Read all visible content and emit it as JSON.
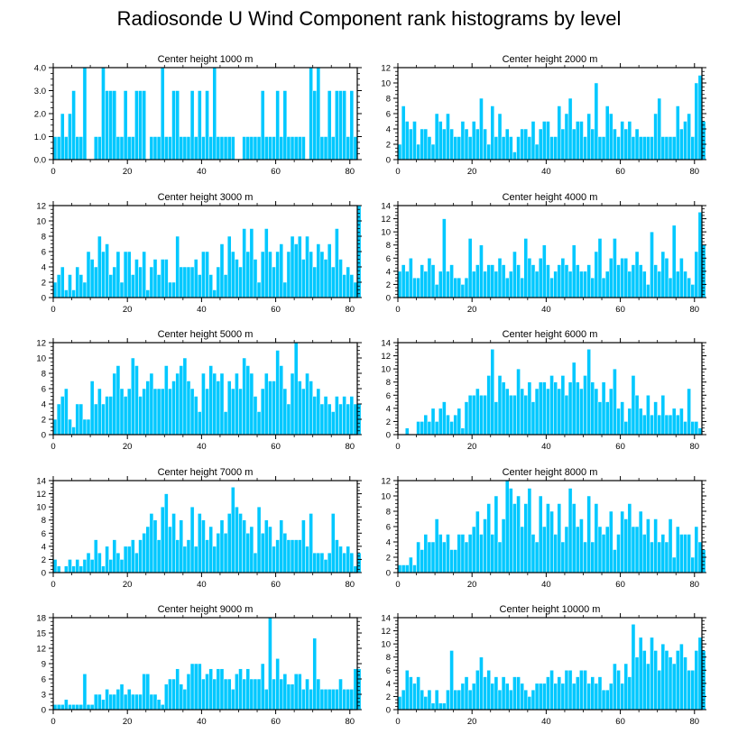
{
  "title": "Radiosonde U Wind Component rank histograms by level",
  "colors": {
    "bar": "#00c8ff",
    "bar_edge": "#ffffff",
    "axis": "#000000"
  },
  "chart_data": [
    {
      "type": "bar",
      "title": "Center height 1000 m",
      "xlim": [
        0,
        82
      ],
      "ylim": [
        0,
        4
      ],
      "xticks": [
        0,
        20,
        40,
        60,
        80
      ],
      "yticks": [
        0,
        1,
        2,
        3,
        4
      ],
      "ytick_labels": [
        "0.0",
        "1.0",
        "2.0",
        "3.0",
        "4.0"
      ],
      "values": [
        1,
        1,
        2,
        1,
        2,
        3,
        1,
        1,
        4,
        0,
        0,
        1,
        1,
        4,
        3,
        3,
        3,
        1,
        1,
        3,
        1,
        1,
        3,
        3,
        3,
        0,
        1,
        1,
        1,
        4,
        1,
        1,
        3,
        3,
        1,
        1,
        1,
        3,
        1,
        3,
        1,
        3,
        1,
        4,
        1,
        1,
        1,
        1,
        1,
        0,
        0,
        1,
        1,
        1,
        1,
        1,
        3,
        1,
        1,
        1,
        3,
        1,
        3,
        1,
        1,
        1,
        1,
        1,
        0,
        4,
        3,
        4,
        1,
        1,
        3,
        1,
        3,
        3,
        3,
        1,
        3,
        1
      ]
    },
    {
      "type": "bar",
      "title": "Center height 2000 m",
      "xlim": [
        0,
        82
      ],
      "ylim": [
        0,
        12
      ],
      "xticks": [
        0,
        20,
        40,
        60,
        80
      ],
      "yticks": [
        0,
        2,
        4,
        6,
        8,
        10,
        12
      ],
      "ytick_labels": [
        "0",
        "2",
        "4",
        "6",
        "8",
        "10",
        "12"
      ],
      "values": [
        2,
        7,
        5,
        4,
        5,
        2,
        4,
        4,
        3,
        2,
        6,
        5,
        4,
        6,
        4,
        3,
        3,
        5,
        4,
        3,
        5,
        4,
        8,
        4,
        2,
        7,
        3,
        6,
        3,
        4,
        3,
        1,
        3,
        4,
        4,
        3,
        5,
        2,
        4,
        5,
        5,
        3,
        3,
        7,
        4,
        6,
        8,
        4,
        5,
        5,
        3,
        6,
        4,
        10,
        3,
        3,
        7,
        6,
        4,
        3,
        5,
        4,
        5,
        3,
        4,
        3,
        3,
        3,
        3,
        6,
        8,
        3,
        3,
        3,
        3,
        7,
        4,
        5,
        6,
        3,
        10,
        11,
        5
      ]
    },
    {
      "type": "bar",
      "title": "Center height 3000 m",
      "xlim": [
        0,
        82
      ],
      "ylim": [
        0,
        12
      ],
      "xticks": [
        0,
        20,
        40,
        60,
        80
      ],
      "yticks": [
        0,
        2,
        4,
        6,
        8,
        10,
        12
      ],
      "ytick_labels": [
        "0",
        "2",
        "4",
        "6",
        "8",
        "10",
        "12"
      ],
      "values": [
        2,
        3,
        4,
        1,
        3,
        1,
        4,
        3,
        2,
        6,
        5,
        4,
        8,
        6,
        7,
        3,
        4,
        6,
        2,
        6,
        6,
        3,
        5,
        4,
        6,
        1,
        4,
        5,
        3,
        5,
        5,
        2,
        2,
        8,
        4,
        4,
        4,
        4,
        5,
        3,
        6,
        6,
        3,
        1,
        4,
        7,
        3,
        8,
        6,
        5,
        4,
        9,
        6,
        9,
        5,
        2,
        6,
        9,
        6,
        4,
        6,
        7,
        2,
        6,
        8,
        7,
        8,
        5,
        8,
        6,
        4,
        7,
        6,
        5,
        7,
        4,
        9,
        5,
        3,
        4,
        3,
        2,
        12
      ]
    },
    {
      "type": "bar",
      "title": "Center height 4000 m",
      "xlim": [
        0,
        82
      ],
      "ylim": [
        0,
        14
      ],
      "xticks": [
        0,
        20,
        40,
        60,
        80
      ],
      "yticks": [
        0,
        2,
        4,
        6,
        8,
        10,
        12,
        14
      ],
      "ytick_labels": [
        "0",
        "2",
        "4",
        "6",
        "8",
        "10",
        "12",
        "14"
      ],
      "values": [
        4,
        5,
        4,
        6,
        3,
        3,
        5,
        4,
        6,
        5,
        2,
        4,
        12,
        4,
        5,
        3,
        3,
        2,
        3,
        9,
        4,
        5,
        8,
        4,
        5,
        5,
        4,
        6,
        5,
        3,
        4,
        7,
        5,
        3,
        9,
        6,
        5,
        4,
        6,
        8,
        5,
        3,
        4,
        5,
        6,
        5,
        4,
        8,
        5,
        4,
        4,
        5,
        3,
        7,
        9,
        3,
        4,
        6,
        9,
        5,
        6,
        6,
        4,
        5,
        7,
        5,
        4,
        2,
        10,
        5,
        4,
        7,
        6,
        3,
        11,
        4,
        6,
        4,
        3,
        2,
        7,
        13,
        8
      ]
    },
    {
      "type": "bar",
      "title": "Center height 5000 m",
      "xlim": [
        0,
        82
      ],
      "ylim": [
        0,
        12
      ],
      "xticks": [
        0,
        20,
        40,
        60,
        80
      ],
      "yticks": [
        0,
        2,
        4,
        6,
        8,
        10,
        12
      ],
      "ytick_labels": [
        "0",
        "2",
        "4",
        "6",
        "8",
        "10",
        "12"
      ],
      "values": [
        2,
        4,
        5,
        6,
        2,
        1,
        4,
        4,
        2,
        2,
        7,
        4,
        6,
        4,
        5,
        5,
        8,
        9,
        6,
        5,
        6,
        10,
        9,
        5,
        6,
        7,
        8,
        6,
        6,
        6,
        9,
        6,
        7,
        8,
        9,
        10,
        7,
        6,
        5,
        3,
        8,
        6,
        9,
        8,
        7,
        8,
        3,
        7,
        6,
        8,
        6,
        10,
        9,
        8,
        5,
        3,
        6,
        8,
        7,
        7,
        11,
        9,
        6,
        4,
        8,
        12,
        7,
        6,
        8,
        7,
        5,
        6,
        4,
        5,
        4,
        3,
        5,
        4,
        5,
        4,
        5,
        4,
        4
      ]
    },
    {
      "type": "bar",
      "title": "Center height 6000 m",
      "xlim": [
        0,
        82
      ],
      "ylim": [
        0,
        14
      ],
      "xticks": [
        0,
        20,
        40,
        60,
        80
      ],
      "yticks": [
        0,
        2,
        4,
        6,
        8,
        10,
        12,
        14
      ],
      "ytick_labels": [
        "0",
        "2",
        "4",
        "6",
        "8",
        "10",
        "12",
        "14"
      ],
      "values": [
        0,
        0,
        1,
        0,
        0,
        2,
        2,
        3,
        2,
        4,
        2,
        4,
        5,
        3,
        2,
        3,
        4,
        1,
        5,
        6,
        6,
        7,
        6,
        6,
        9,
        13,
        5,
        9,
        8,
        7,
        6,
        6,
        10,
        7,
        6,
        8,
        5,
        7,
        8,
        8,
        7,
        9,
        8,
        7,
        9,
        6,
        8,
        11,
        8,
        7,
        9,
        13,
        8,
        7,
        5,
        8,
        5,
        7,
        10,
        4,
        5,
        2,
        4,
        9,
        6,
        4,
        3,
        6,
        3,
        5,
        3,
        6,
        3,
        3,
        4,
        3,
        4,
        2,
        7,
        2,
        2,
        1,
        0
      ]
    },
    {
      "type": "bar",
      "title": "Center height 7000 m",
      "xlim": [
        0,
        82
      ],
      "ylim": [
        0,
        14
      ],
      "xticks": [
        0,
        20,
        40,
        60,
        80
      ],
      "yticks": [
        0,
        2,
        4,
        6,
        8,
        10,
        12,
        14
      ],
      "ytick_labels": [
        "0",
        "2",
        "4",
        "6",
        "8",
        "10",
        "12",
        "14"
      ],
      "values": [
        2,
        1,
        0,
        1,
        2,
        1,
        2,
        1,
        2,
        3,
        2,
        5,
        3,
        1,
        4,
        2,
        5,
        3,
        2,
        4,
        4,
        5,
        3,
        5,
        6,
        7,
        9,
        8,
        5,
        10,
        12,
        7,
        9,
        5,
        8,
        4,
        5,
        10,
        4,
        9,
        8,
        5,
        7,
        4,
        6,
        8,
        6,
        9,
        13,
        10,
        9,
        8,
        6,
        7,
        3,
        10,
        6,
        8,
        7,
        4,
        5,
        8,
        6,
        5,
        5,
        5,
        5,
        8,
        4,
        9,
        3,
        3,
        3,
        2,
        3,
        9,
        5,
        4,
        3,
        4,
        3,
        1,
        3
      ]
    },
    {
      "type": "bar",
      "title": "Center height 8000 m",
      "xlim": [
        0,
        82
      ],
      "ylim": [
        0,
        12
      ],
      "xticks": [
        0,
        20,
        40,
        60,
        80
      ],
      "yticks": [
        0,
        2,
        4,
        6,
        8,
        10,
        12
      ],
      "ytick_labels": [
        "0",
        "2",
        "4",
        "6",
        "8",
        "10",
        "12"
      ],
      "values": [
        1,
        1,
        1,
        2,
        1,
        4,
        3,
        5,
        4,
        4,
        7,
        5,
        4,
        5,
        3,
        3,
        5,
        5,
        4,
        5,
        6,
        8,
        5,
        7,
        9,
        5,
        10,
        4,
        7,
        12,
        11,
        9,
        10,
        6,
        9,
        11,
        5,
        4,
        10,
        6,
        9,
        8,
        5,
        9,
        4,
        6,
        11,
        9,
        6,
        7,
        4,
        10,
        4,
        9,
        6,
        5,
        6,
        8,
        3,
        5,
        8,
        7,
        9,
        6,
        6,
        8,
        5,
        7,
        4,
        7,
        4,
        5,
        4,
        7,
        2,
        6,
        5,
        5,
        5,
        2,
        6,
        4,
        3
      ]
    },
    {
      "type": "bar",
      "title": "Center height 9000 m",
      "xlim": [
        0,
        82
      ],
      "ylim": [
        0,
        18
      ],
      "xticks": [
        0,
        20,
        40,
        60,
        80
      ],
      "yticks": [
        0,
        3,
        6,
        9,
        12,
        15,
        18
      ],
      "ytick_labels": [
        "0",
        "3",
        "6",
        "9",
        "12",
        "15",
        "18"
      ],
      "values": [
        1,
        1,
        1,
        2,
        1,
        1,
        1,
        1,
        7,
        1,
        1,
        3,
        3,
        2,
        4,
        3,
        3,
        4,
        5,
        3,
        4,
        3,
        3,
        3,
        7,
        7,
        3,
        3,
        2,
        1,
        5,
        6,
        6,
        8,
        5,
        4,
        7,
        9,
        9,
        9,
        6,
        7,
        8,
        6,
        8,
        8,
        6,
        6,
        4,
        7,
        8,
        6,
        8,
        6,
        6,
        6,
        9,
        4,
        18,
        6,
        10,
        6,
        7,
        5,
        5,
        7,
        7,
        4,
        6,
        4,
        14,
        6,
        4,
        4,
        4,
        4,
        4,
        6,
        4,
        4,
        4,
        8,
        8
      ]
    },
    {
      "type": "bar",
      "title": "Center height 10000 m",
      "xlim": [
        0,
        82
      ],
      "ylim": [
        0,
        14
      ],
      "xticks": [
        0,
        20,
        40,
        60,
        80
      ],
      "yticks": [
        0,
        2,
        4,
        6,
        8,
        10,
        12,
        14
      ],
      "ytick_labels": [
        "0",
        "2",
        "4",
        "6",
        "8",
        "10",
        "12",
        "14"
      ],
      "values": [
        2,
        3,
        6,
        5,
        4,
        5,
        3,
        2,
        3,
        1,
        3,
        1,
        1,
        3,
        9,
        3,
        3,
        4,
        5,
        3,
        4,
        6,
        8,
        5,
        6,
        4,
        5,
        3,
        5,
        4,
        3,
        5,
        5,
        4,
        3,
        2,
        3,
        4,
        4,
        4,
        5,
        6,
        4,
        5,
        4,
        6,
        6,
        4,
        5,
        6,
        6,
        4,
        5,
        4,
        5,
        3,
        3,
        4,
        7,
        6,
        4,
        7,
        5,
        13,
        8,
        11,
        9,
        7,
        11,
        9,
        6,
        10,
        9,
        8,
        7,
        9,
        10,
        8,
        6,
        6,
        9,
        11,
        9
      ]
    }
  ]
}
